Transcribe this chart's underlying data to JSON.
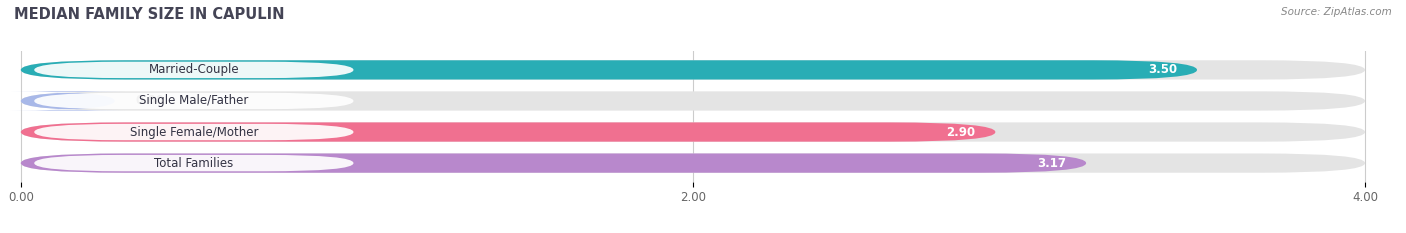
{
  "title": "MEDIAN FAMILY SIZE IN CAPULIN",
  "source": "Source: ZipAtlas.com",
  "categories": [
    "Married-Couple",
    "Single Male/Father",
    "Single Female/Mother",
    "Total Families"
  ],
  "values": [
    3.5,
    0.0,
    2.9,
    3.17
  ],
  "bar_colors": [
    "#29adb5",
    "#a8b8e8",
    "#f07090",
    "#b888cc"
  ],
  "bar_bg_color": "#e4e4e4",
  "label_bg_color": "#ffffff",
  "xlim_max": 4.0,
  "xticks": [
    0.0,
    2.0,
    4.0
  ],
  "xtick_labels": [
    "0.00",
    "2.00",
    "4.00"
  ],
  "label_fontsize": 8.5,
  "title_fontsize": 10.5,
  "value_label_color": "#ffffff",
  "zero_value_color": "#555555",
  "figsize": [
    14.06,
    2.33
  ],
  "dpi": 100,
  "bg_color": "#ffffff",
  "title_color": "#444455",
  "source_color": "#888888",
  "grid_color": "#cccccc"
}
